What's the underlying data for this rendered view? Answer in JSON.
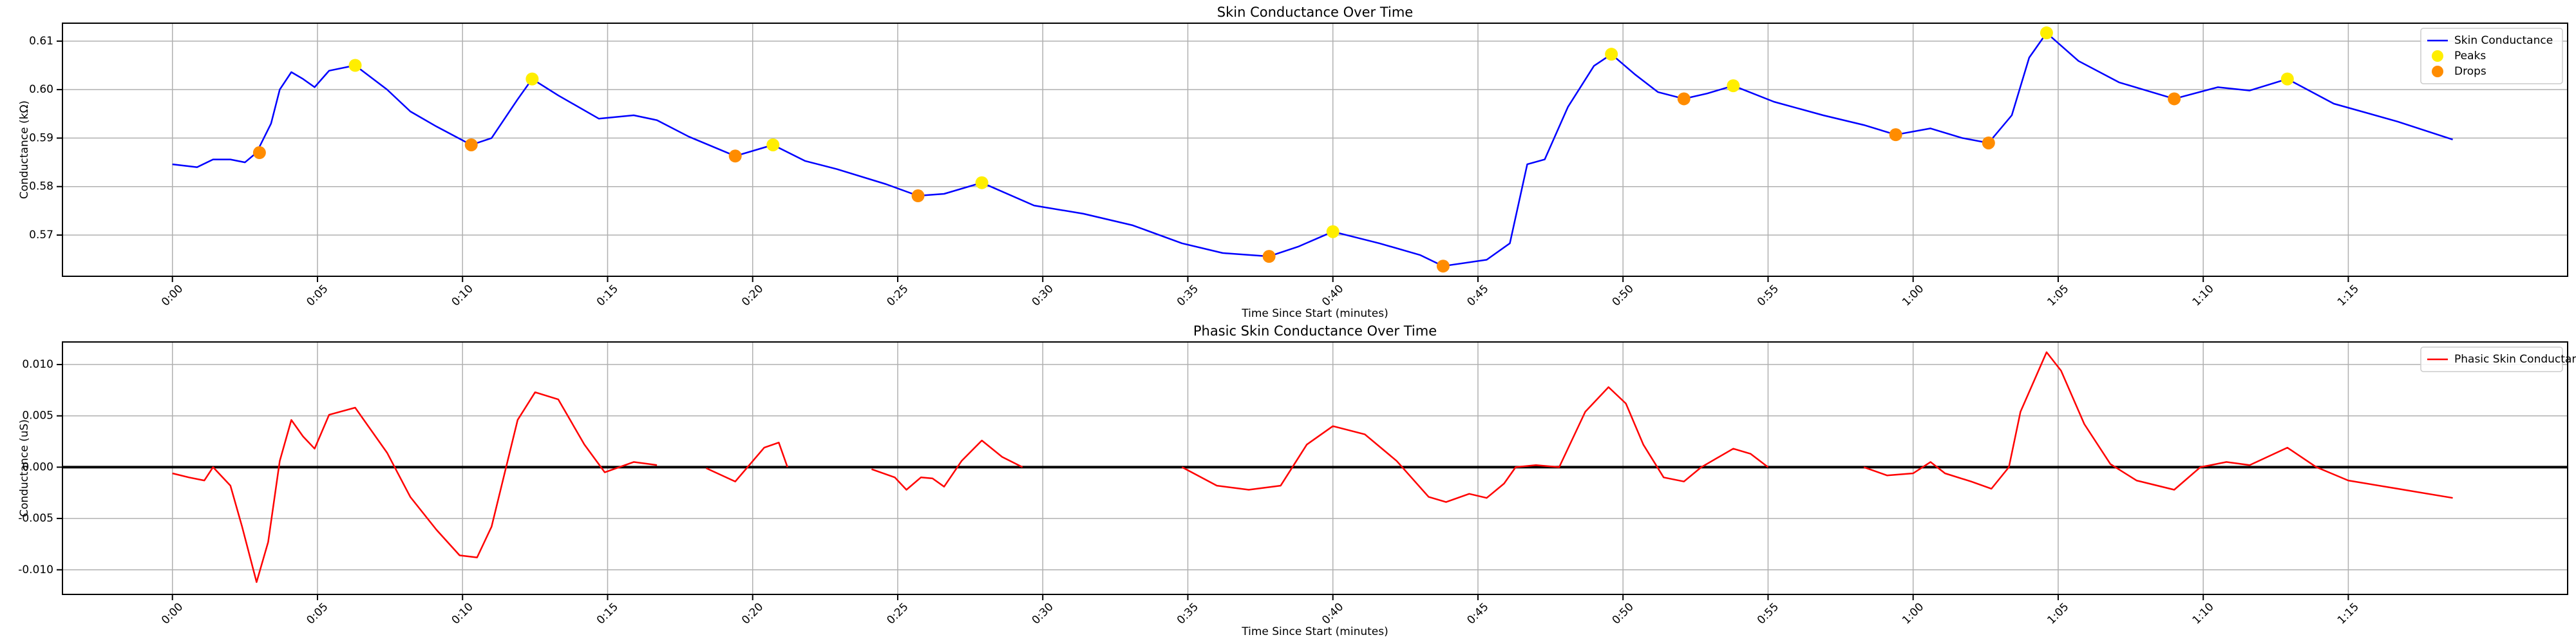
{
  "chart_data": [
    {
      "type": "line",
      "title": "Skin Conductance Over Time",
      "xlabel": "Time Since Start (minutes)",
      "ylabel": "Conductance (kΩ)",
      "xlim": [
        -3.79,
        82.56
      ],
      "ylim": [
        0.5615,
        0.6137
      ],
      "xticks": [
        {
          "value": 0,
          "label": "0:00"
        },
        {
          "value": 5,
          "label": "0:05"
        },
        {
          "value": 10,
          "label": "0:10"
        },
        {
          "value": 15,
          "label": "0:15"
        },
        {
          "value": 20,
          "label": "0:20"
        },
        {
          "value": 25,
          "label": "0:25"
        },
        {
          "value": 30,
          "label": "0:30"
        },
        {
          "value": 35,
          "label": "0:35"
        },
        {
          "value": 40,
          "label": "0:40"
        },
        {
          "value": 45,
          "label": "0:45"
        },
        {
          "value": 50,
          "label": "0:50"
        },
        {
          "value": 55,
          "label": "0:55"
        },
        {
          "value": 60,
          "label": "1:00"
        },
        {
          "value": 65,
          "label": "1:05"
        },
        {
          "value": 70,
          "label": "1:10"
        },
        {
          "value": 75,
          "label": "1:15"
        }
      ],
      "yticks": [
        0.57,
        0.58,
        0.59,
        {
          "value": 0.6,
          "label": "0.60"
        },
        0.61
      ],
      "grid": true,
      "legend": "upper right",
      "series": [
        {
          "name": "Skin Conductance",
          "type": "line",
          "color": "#0000ff",
          "x": [
            0,
            0.85,
            1.4,
            2,
            2.5,
            2.9,
            3.4,
            3.7,
            4.1,
            4.5,
            4.9,
            5.4,
            6.3,
            7.4,
            8.2,
            9.1,
            10.3,
            11,
            11.9,
            12.4,
            13.3,
            14.7,
            15.9,
            16.7,
            17.8,
            19.4,
            20.7,
            21.8,
            22.9,
            24.6,
            25.7,
            26.6,
            27.9,
            29.7,
            31.4,
            33.1,
            34.8,
            36.2,
            37.8,
            38.8,
            40,
            41.6,
            43,
            43.8,
            45.3,
            46.1,
            46.7,
            47.3,
            48.1,
            49,
            49.6,
            50.4,
            51.2,
            52.1,
            52.9,
            53.8,
            55.2,
            56.9,
            58.3,
            59.4,
            60.6,
            61.7,
            62.6,
            63.4,
            64,
            64.6,
            65.7,
            67.1,
            69,
            70.5,
            71.6,
            72.9,
            74.5,
            76.7,
            78.6
          ],
          "values": [
            0.5846,
            0.584,
            0.5856,
            0.5856,
            0.585,
            0.587,
            0.593,
            0.6,
            0.6036,
            0.6022,
            0.6005,
            0.6039,
            0.605,
            0.6,
            0.5955,
            0.5924,
            0.5886,
            0.59,
            0.598,
            0.6022,
            0.5988,
            0.594,
            0.5947,
            0.5937,
            0.5903,
            0.5863,
            0.5886,
            0.5853,
            0.5836,
            0.5805,
            0.5781,
            0.5785,
            0.5808,
            0.5761,
            0.5744,
            0.572,
            0.5683,
            0.5663,
            0.5656,
            0.5676,
            0.5707,
            0.5683,
            0.5659,
            0.5636,
            0.5649,
            0.5683,
            0.5846,
            0.5856,
            0.5964,
            0.6049,
            0.6073,
            0.6032,
            0.5995,
            0.5981,
            0.5992,
            0.6008,
            0.5975,
            0.5947,
            0.5927,
            0.5907,
            0.592,
            0.59,
            0.589,
            0.5947,
            0.6066,
            0.6117,
            0.6059,
            0.6015,
            0.5981,
            0.6005,
            0.5998,
            0.6022,
            0.5971,
            0.5934,
            0.5897
          ]
        },
        {
          "name": "Peaks",
          "type": "scatter",
          "color": "#ffee00",
          "x": [
            6.3,
            12.4,
            20.7,
            27.9,
            40,
            49.6,
            53.8,
            64.6,
            72.9
          ],
          "values": [
            0.605,
            0.6022,
            0.5886,
            0.5808,
            0.5707,
            0.6073,
            0.6008,
            0.6117,
            0.6022
          ]
        },
        {
          "name": "Drops",
          "type": "scatter",
          "color": "#ff8c00",
          "x": [
            3,
            10.3,
            19.4,
            25.7,
            37.8,
            43.8,
            52.1,
            59.4,
            62.6,
            69
          ],
          "values": [
            0.587,
            0.5886,
            0.5863,
            0.5781,
            0.5656,
            0.5636,
            0.5981,
            0.5907,
            0.589,
            0.5981
          ]
        }
      ]
    },
    {
      "type": "line",
      "title": "Phasic Skin Conductance Over Time",
      "xlabel": "Time Since Start (minutes)",
      "ylabel": "Conductance (uS)",
      "xlim": [
        -3.79,
        82.56
      ],
      "ylim": [
        -0.0124,
        0.0122
      ],
      "xticks": [
        {
          "value": 0,
          "label": "0:00"
        },
        {
          "value": 5,
          "label": "0:05"
        },
        {
          "value": 10,
          "label": "0:10"
        },
        {
          "value": 15,
          "label": "0:15"
        },
        {
          "value": 20,
          "label": "0:20"
        },
        {
          "value": 25,
          "label": "0:25"
        },
        {
          "value": 30,
          "label": "0:30"
        },
        {
          "value": 35,
          "label": "0:35"
        },
        {
          "value": 40,
          "label": "0:40"
        },
        {
          "value": 45,
          "label": "0:45"
        },
        {
          "value": 50,
          "label": "0:50"
        },
        {
          "value": 55,
          "label": "0:55"
        },
        {
          "value": 60,
          "label": "1:00"
        },
        {
          "value": 65,
          "label": "1:05"
        },
        {
          "value": 70,
          "label": "1:10"
        },
        {
          "value": 75,
          "label": "1:15"
        }
      ],
      "yticks": [
        {
          "value": -0.01,
          "label": "-0.010"
        },
        {
          "value": -0.005,
          "label": "-0.005"
        },
        {
          "value": 0,
          "label": "0.000"
        },
        {
          "value": 0.005,
          "label": "0.005"
        },
        {
          "value": 0.01,
          "label": "0.010"
        }
      ],
      "grid": true,
      "legend": "upper right",
      "axhline": 0,
      "series": [
        {
          "name": "Phasic Skin Conductance",
          "type": "line",
          "color": "#ff0000",
          "x": [
            0,
            0.57,
            1.1,
            1.4,
            2,
            2.4,
            2.9,
            3.3,
            3.7,
            4.1,
            4.5,
            4.9,
            5.4,
            6.3,
            7.4,
            8.2,
            9.1,
            9.9,
            10.5,
            11,
            11.9,
            12.5,
            13.3,
            14.2,
            14.9,
            15.9,
            16.7,
            17.5,
            18.4,
            19.4,
            20.4,
            20.9,
            21.2,
            22.6,
            24.1,
            24.9,
            25.3,
            25.8,
            26.2,
            26.6,
            27.2,
            27.9,
            28.6,
            29.3,
            32,
            34.8,
            36,
            37.1,
            38.2,
            39.1,
            40,
            41.1,
            42.2,
            43.3,
            43.9,
            44.7,
            45.3,
            45.9,
            46.3,
            47,
            47.8,
            48.7,
            49.5,
            50.1,
            50.7,
            51.4,
            52.1,
            52.7,
            53.8,
            54.4,
            55,
            56.6,
            58.3,
            59.1,
            60,
            60.6,
            61.1,
            62,
            62.7,
            63.3,
            63.7,
            64.6,
            65.1,
            65.9,
            66.8,
            67.7,
            69,
            69.9,
            70.8,
            71.6,
            72.9,
            73.9,
            75,
            76.7,
            78.6
          ],
          "values": [
            -0.0006,
            -0.001,
            -0.0013,
            0,
            -0.0018,
            -0.0058,
            -0.0112,
            -0.0073,
            0.0006,
            0.0046,
            0.003,
            0.0018,
            0.0051,
            0.0058,
            0.0014,
            -0.0029,
            -0.0061,
            -0.0086,
            -0.0088,
            -0.0058,
            0.0046,
            0.0073,
            0.0066,
            0.0022,
            -0.0005,
            0.0005,
            0.0002,
            null,
            -0.0001,
            -0.0014,
            0.0019,
            0.0024,
            0,
            null,
            -0.0002,
            -0.001,
            -0.0022,
            -0.001,
            -0.0011,
            -0.0019,
            0.0006,
            0.0026,
            0.001,
            0,
            null,
            0,
            -0.0018,
            -0.0022,
            -0.0018,
            0.0022,
            0.004,
            0.0032,
            0.0006,
            -0.0029,
            -0.0034,
            -0.0026,
            -0.003,
            -0.0016,
            0,
            0.0002,
            0,
            0.0054,
            0.0078,
            0.0062,
            0.0022,
            -0.001,
            -0.0014,
            0,
            0.0018,
            0.0013,
            0,
            null,
            0,
            -0.0008,
            -0.0006,
            0.0005,
            -0.0006,
            -0.0014,
            -0.0021,
            0,
            0.0054,
            0.0112,
            0.0094,
            0.0042,
            0.0003,
            -0.0013,
            -0.0022,
            0,
            0.0005,
            0.0002,
            0.0019,
            0,
            -0.0013,
            -0.0021,
            -0.003
          ]
        }
      ]
    }
  ]
}
